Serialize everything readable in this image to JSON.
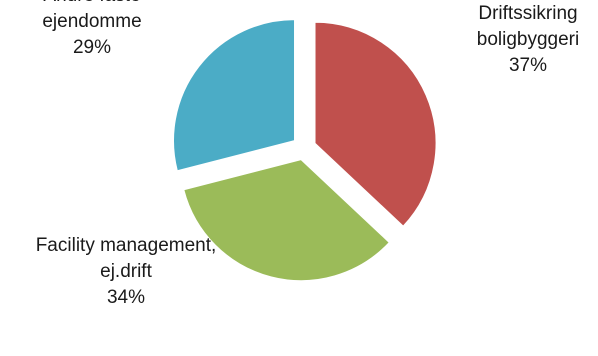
{
  "chart_data": {
    "type": "pie",
    "title": "",
    "slices": [
      {
        "label_lines": [
          "Driftssikring",
          "boligbyggeri"
        ],
        "value": 37,
        "value_label": "37%",
        "color": "#c0504d"
      },
      {
        "label_lines": [
          "Facility management,",
          "ej.drift"
        ],
        "value": 34,
        "value_label": "34%",
        "color": "#9bbb59"
      },
      {
        "label_lines": [
          "Andre faste",
          "ejendomme"
        ],
        "value": 29,
        "value_label": "29%",
        "color": "#4bacc6"
      }
    ],
    "exploded": true,
    "legend": "none",
    "data_labels": "outside"
  }
}
